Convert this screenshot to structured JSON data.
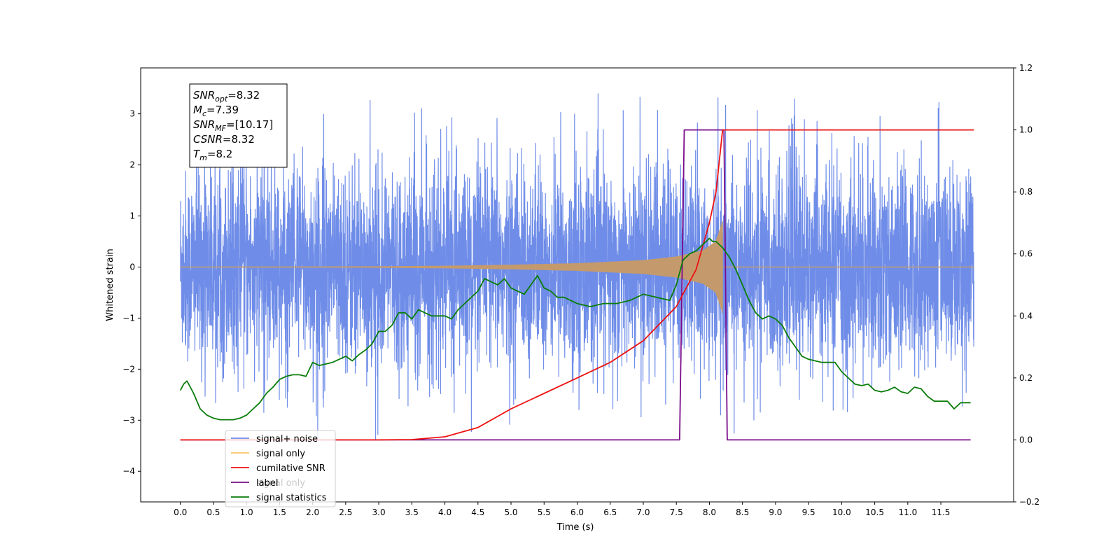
{
  "chart_data": {
    "type": "line",
    "xlabel": "Time (s)",
    "ylabel": "Whitened strain",
    "xlim": [
      -0.6,
      12.6
    ],
    "ylim": [
      -4.6,
      3.9
    ],
    "y2lim": [
      -0.2,
      1.2
    ],
    "x_ticks": [
      "0.0",
      "0.5",
      "1.0",
      "1.5",
      "2.0",
      "2.5",
      "3.0",
      "3.5",
      "4.0",
      "4.5",
      "5.0",
      "5.5",
      "6.0",
      "6.5",
      "7.0",
      "7.5",
      "8.0",
      "8.5",
      "9.0",
      "9.5",
      "10.0",
      "10.5",
      "11.0",
      "11.5"
    ],
    "y_ticks": [
      "3",
      "2",
      "1",
      "0",
      "−1",
      "−2",
      "−3",
      "−4"
    ],
    "y2_ticks": [
      "1.2",
      "1.0",
      "0.8",
      "0.6",
      "0.4",
      "0.2",
      "0.0",
      "−0.2"
    ],
    "legend_position": "lower-left",
    "colors": {
      "signal_noise": "#6f8de8",
      "signal_only": "#f6c46a",
      "signal_fill": "#c49a6c",
      "cumulative_snr": "#ee1111",
      "label": "#7b0c8a",
      "signal_statistics": "#0a7d0a"
    },
    "series": [
      {
        "name": "signal+ noise",
        "axis": "left",
        "t_range": [
          0.0,
          12.0
        ],
        "envelope_typical": 1.5,
        "envelope_peak": 3.4
      },
      {
        "name": "signal only",
        "axis": "left",
        "t_range": [
          0.0,
          8.2
        ],
        "amplitude_points": [
          [
            0.0,
            0.0
          ],
          [
            3.0,
            0.01
          ],
          [
            4.0,
            0.02
          ],
          [
            5.0,
            0.04
          ],
          [
            6.0,
            0.07
          ],
          [
            7.0,
            0.13
          ],
          [
            7.5,
            0.2
          ],
          [
            7.9,
            0.32
          ],
          [
            8.1,
            0.5
          ],
          [
            8.2,
            0.9
          ]
        ]
      },
      {
        "name": "cumilative SNR",
        "axis": "right",
        "points": [
          [
            0.0,
            0.0
          ],
          [
            3.0,
            0.0
          ],
          [
            3.5,
            0.001
          ],
          [
            4.0,
            0.01
          ],
          [
            4.5,
            0.04
          ],
          [
            5.0,
            0.1
          ],
          [
            5.5,
            0.15
          ],
          [
            6.0,
            0.2
          ],
          [
            6.5,
            0.25
          ],
          [
            7.0,
            0.32
          ],
          [
            7.5,
            0.43
          ],
          [
            7.8,
            0.55
          ],
          [
            8.0,
            0.7
          ],
          [
            8.1,
            0.8
          ],
          [
            8.2,
            1.0
          ],
          [
            12.0,
            1.0
          ]
        ]
      },
      {
        "name": "label",
        "axis": "right",
        "points": [
          [
            0.0,
            0.0
          ],
          [
            7.55,
            0.0
          ],
          [
            7.62,
            1.0
          ],
          [
            8.22,
            1.0
          ],
          [
            8.27,
            0.0
          ],
          [
            11.95,
            0.0
          ]
        ]
      },
      {
        "name": "signal statistics",
        "axis": "right",
        "points": [
          [
            0.0,
            0.16
          ],
          [
            0.05,
            0.18
          ],
          [
            0.1,
            0.19
          ],
          [
            0.15,
            0.17
          ],
          [
            0.2,
            0.15
          ],
          [
            0.3,
            0.1
          ],
          [
            0.4,
            0.08
          ],
          [
            0.5,
            0.07
          ],
          [
            0.6,
            0.065
          ],
          [
            0.7,
            0.065
          ],
          [
            0.8,
            0.065
          ],
          [
            0.9,
            0.07
          ],
          [
            1.0,
            0.08
          ],
          [
            1.1,
            0.1
          ],
          [
            1.2,
            0.12
          ],
          [
            1.3,
            0.15
          ],
          [
            1.4,
            0.17
          ],
          [
            1.5,
            0.195
          ],
          [
            1.6,
            0.205
          ],
          [
            1.7,
            0.21
          ],
          [
            1.8,
            0.21
          ],
          [
            1.9,
            0.205
          ],
          [
            2.0,
            0.25
          ],
          [
            2.1,
            0.24
          ],
          [
            2.3,
            0.25
          ],
          [
            2.5,
            0.27
          ],
          [
            2.6,
            0.255
          ],
          [
            2.7,
            0.275
          ],
          [
            2.8,
            0.29
          ],
          [
            2.9,
            0.31
          ],
          [
            3.0,
            0.35
          ],
          [
            3.1,
            0.35
          ],
          [
            3.2,
            0.37
          ],
          [
            3.3,
            0.41
          ],
          [
            3.4,
            0.41
          ],
          [
            3.5,
            0.39
          ],
          [
            3.6,
            0.42
          ],
          [
            3.7,
            0.41
          ],
          [
            3.8,
            0.4
          ],
          [
            3.9,
            0.4
          ],
          [
            4.0,
            0.4
          ],
          [
            4.1,
            0.39
          ],
          [
            4.2,
            0.42
          ],
          [
            4.3,
            0.44
          ],
          [
            4.4,
            0.46
          ],
          [
            4.5,
            0.48
          ],
          [
            4.6,
            0.52
          ],
          [
            4.7,
            0.51
          ],
          [
            4.8,
            0.5
          ],
          [
            4.9,
            0.52
          ],
          [
            5.0,
            0.49
          ],
          [
            5.1,
            0.48
          ],
          [
            5.2,
            0.47
          ],
          [
            5.3,
            0.5
          ],
          [
            5.4,
            0.53
          ],
          [
            5.5,
            0.49
          ],
          [
            5.6,
            0.48
          ],
          [
            5.7,
            0.46
          ],
          [
            5.8,
            0.46
          ],
          [
            5.9,
            0.45
          ],
          [
            6.0,
            0.44
          ],
          [
            6.2,
            0.43
          ],
          [
            6.4,
            0.44
          ],
          [
            6.6,
            0.44
          ],
          [
            6.8,
            0.45
          ],
          [
            7.0,
            0.47
          ],
          [
            7.2,
            0.46
          ],
          [
            7.4,
            0.45
          ],
          [
            7.5,
            0.5
          ],
          [
            7.6,
            0.58
          ],
          [
            7.7,
            0.6
          ],
          [
            7.8,
            0.61
          ],
          [
            7.9,
            0.63
          ],
          [
            8.0,
            0.65
          ],
          [
            8.05,
            0.64
          ],
          [
            8.1,
            0.64
          ],
          [
            8.2,
            0.62
          ],
          [
            8.3,
            0.59
          ],
          [
            8.4,
            0.55
          ],
          [
            8.5,
            0.5
          ],
          [
            8.6,
            0.45
          ],
          [
            8.7,
            0.41
          ],
          [
            8.8,
            0.39
          ],
          [
            8.9,
            0.4
          ],
          [
            9.0,
            0.39
          ],
          [
            9.1,
            0.37
          ],
          [
            9.2,
            0.33
          ],
          [
            9.3,
            0.3
          ],
          [
            9.4,
            0.27
          ],
          [
            9.5,
            0.26
          ],
          [
            9.6,
            0.255
          ],
          [
            9.7,
            0.25
          ],
          [
            9.8,
            0.25
          ],
          [
            9.9,
            0.25
          ],
          [
            10.0,
            0.22
          ],
          [
            10.1,
            0.2
          ],
          [
            10.2,
            0.18
          ],
          [
            10.3,
            0.175
          ],
          [
            10.4,
            0.18
          ],
          [
            10.5,
            0.16
          ],
          [
            10.6,
            0.155
          ],
          [
            10.7,
            0.16
          ],
          [
            10.8,
            0.17
          ],
          [
            10.9,
            0.155
          ],
          [
            11.0,
            0.15
          ],
          [
            11.1,
            0.17
          ],
          [
            11.2,
            0.165
          ],
          [
            11.3,
            0.14
          ],
          [
            11.4,
            0.125
          ],
          [
            11.5,
            0.125
          ],
          [
            11.6,
            0.125
          ],
          [
            11.7,
            0.1
          ],
          [
            11.8,
            0.12
          ],
          [
            11.9,
            0.12
          ],
          [
            11.95,
            0.12
          ]
        ]
      }
    ],
    "annotation": [
      {
        "base": "SNR",
        "sub": "opt",
        "value": "=8.32"
      },
      {
        "base": "M",
        "sub": "c",
        "value": "=7.39"
      },
      {
        "base": "SNR",
        "sub": "MF",
        "value": "=[10.17]"
      },
      {
        "base": "CSNR",
        "sub": "",
        "value": "=8.32"
      },
      {
        "base": "T",
        "sub": "m",
        "value": "=8.2"
      }
    ],
    "legend": [
      "signal+ noise",
      "signal only",
      "cumilative SNR",
      "label",
      "signal statistics"
    ],
    "legend_hidden_text": "signal only"
  }
}
